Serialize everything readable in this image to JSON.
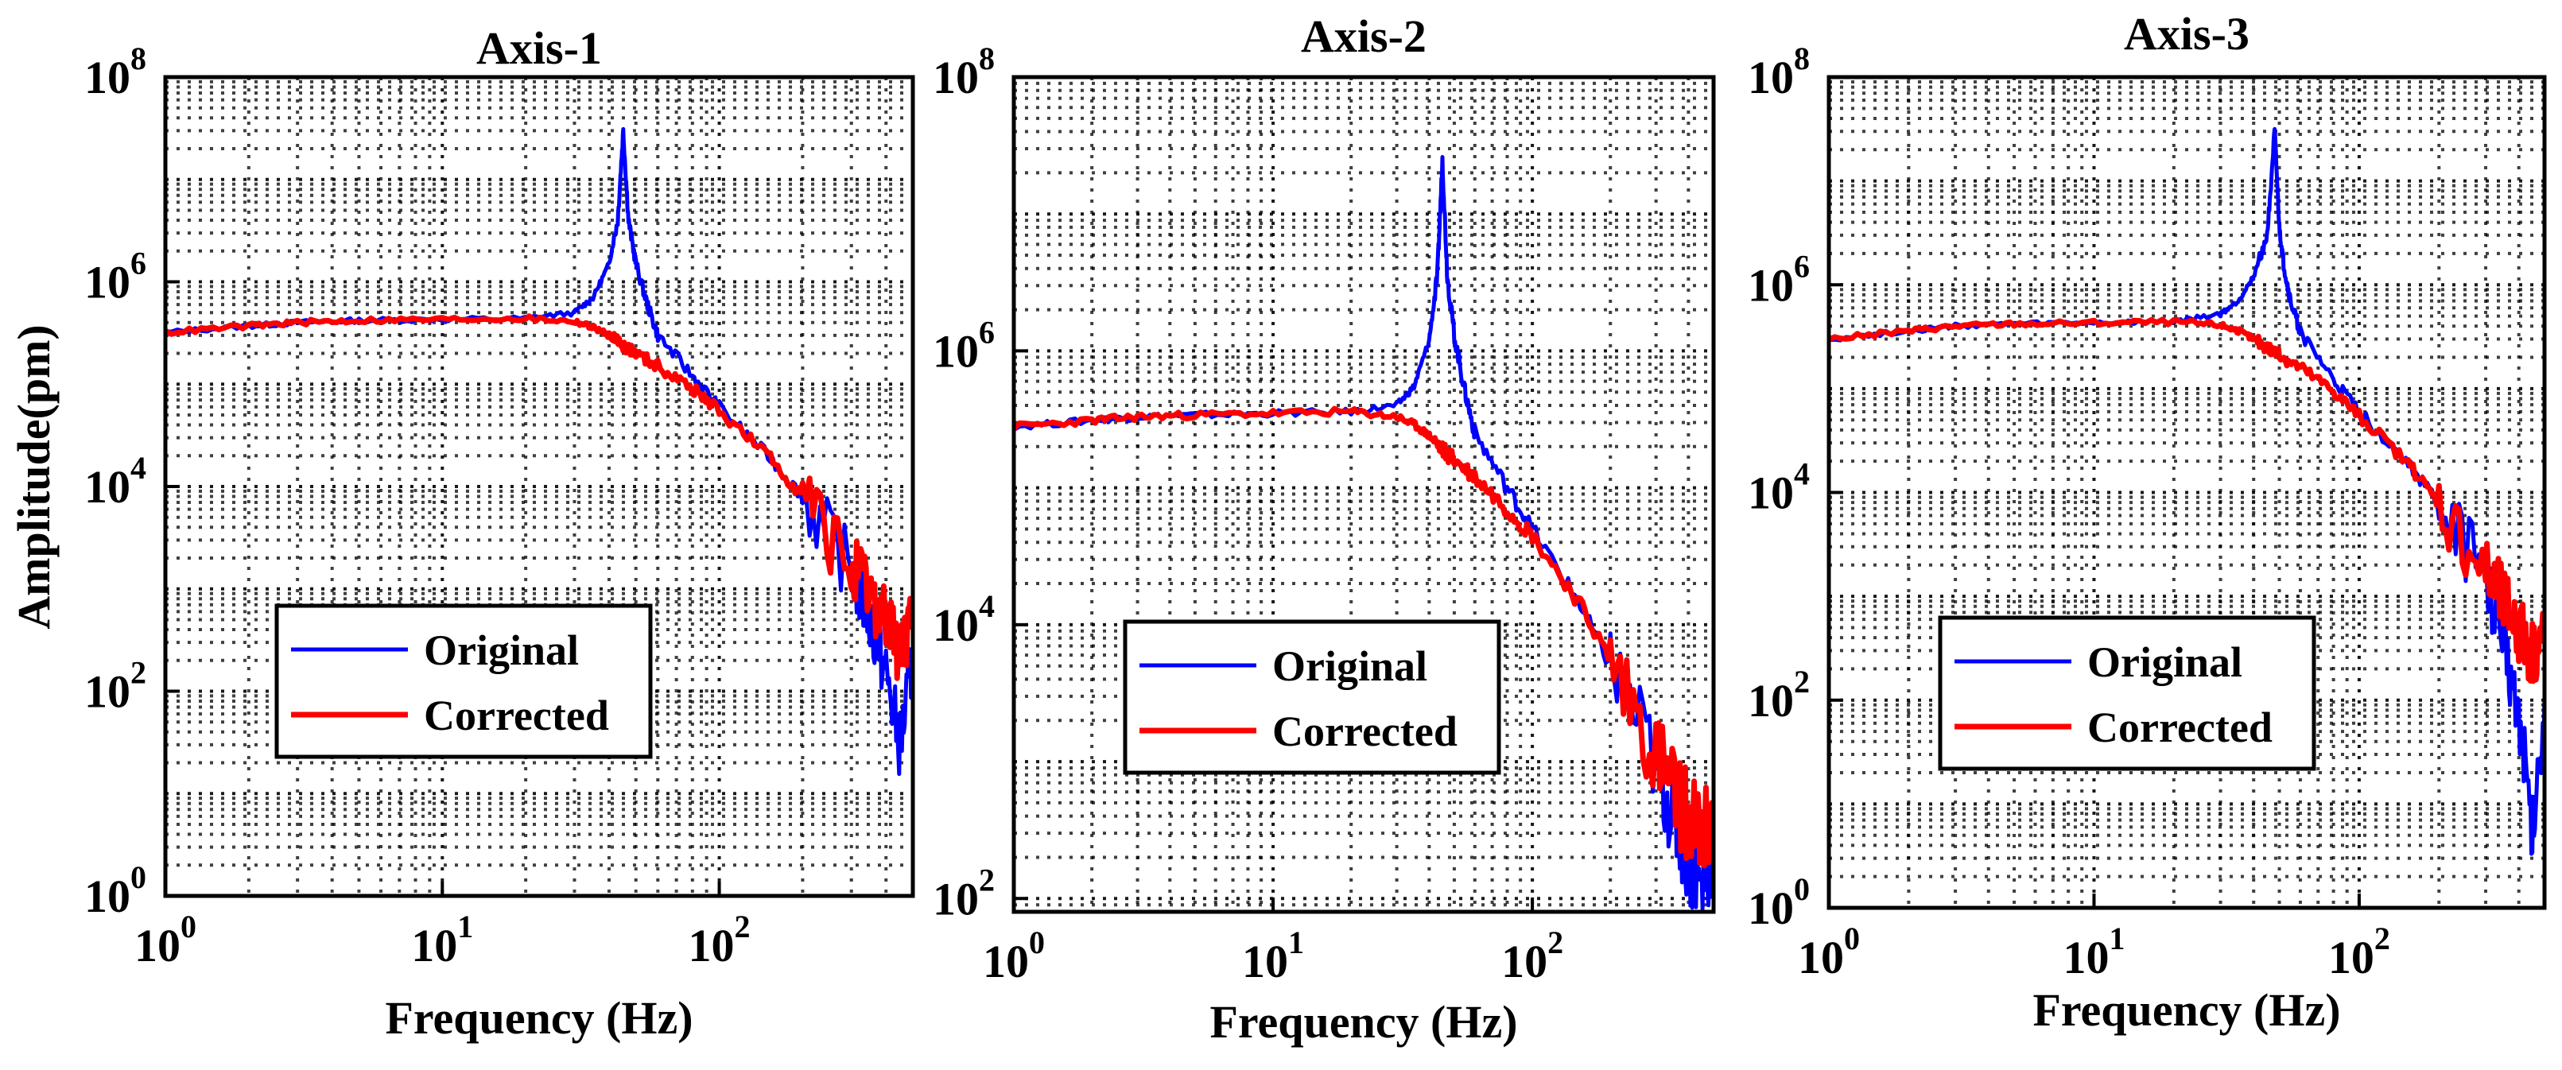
{
  "figure": {
    "ylabel": "Amplitude(pm)",
    "xlabel": "Frequency (Hz)"
  },
  "colors": {
    "original": "#0000ff",
    "corrected": "#ff0000",
    "grid": "#000000"
  },
  "chart_data": [
    {
      "type": "line",
      "title": "Axis-1",
      "xlabel": "Frequency (Hz)",
      "ylabel": "Amplitude(pm)",
      "xscale": "log",
      "yscale": "log",
      "xlim": [
        1,
        500
      ],
      "ylim": [
        1,
        100000000
      ],
      "xticks": [
        {
          "base": "10",
          "exp": "0"
        },
        {
          "base": "10",
          "exp": "1"
        },
        {
          "base": "10",
          "exp": "2"
        }
      ],
      "yticks": [
        {
          "base": "10",
          "exp": "0"
        },
        {
          "base": "10",
          "exp": "2"
        },
        {
          "base": "10",
          "exp": "4"
        },
        {
          "base": "10",
          "exp": "6"
        },
        {
          "base": "10",
          "exp": "8"
        }
      ],
      "grid": true,
      "legend_position": "bottom-left",
      "series": [
        {
          "name": "Original",
          "color": "#0000ff",
          "x": [
            1,
            2,
            3,
            5,
            10,
            20,
            30,
            35,
            40,
            43,
            45,
            47,
            50,
            55,
            60,
            80,
            100,
            150,
            200,
            300,
            350,
            400,
            450,
            500
          ],
          "y": [
            320000,
            370000,
            400000,
            420000,
            430000,
            440000,
            500000,
            700000,
            1500000,
            4000000,
            30000000,
            4000000,
            1500000,
            600000,
            300000,
            120000,
            60000,
            20000,
            8000,
            1500,
            500,
            150,
            30,
            200
          ]
        },
        {
          "name": "Corrected",
          "color": "#ff0000",
          "x": [
            1,
            2,
            3,
            5,
            10,
            20,
            30,
            35,
            40,
            45,
            50,
            60,
            80,
            100,
            150,
            200,
            300,
            350,
            400,
            450,
            500
          ],
          "y": [
            320000,
            370000,
            400000,
            420000,
            430000,
            440000,
            410000,
            360000,
            300000,
            240000,
            200000,
            150000,
            90000,
            55000,
            20000,
            8000,
            1600,
            800,
            500,
            250,
            400
          ]
        }
      ]
    },
    {
      "type": "line",
      "title": "Axis-2",
      "xlabel": "Frequency (Hz)",
      "ylabel": "",
      "xscale": "log",
      "yscale": "log",
      "xlim": [
        1,
        500
      ],
      "ylim": [
        80,
        100000000
      ],
      "xticks": [
        {
          "base": "10",
          "exp": "0"
        },
        {
          "base": "10",
          "exp": "1"
        },
        {
          "base": "10",
          "exp": "2"
        }
      ],
      "yticks": [
        {
          "base": "10",
          "exp": "2"
        },
        {
          "base": "10",
          "exp": "4"
        },
        {
          "base": "10",
          "exp": "6"
        },
        {
          "base": "10",
          "exp": "8"
        }
      ],
      "grid": true,
      "legend_position": "bottom-left",
      "series": [
        {
          "name": "Original",
          "color": "#0000ff",
          "x": [
            1,
            2,
            3,
            5,
            10,
            20,
            30,
            35,
            40,
            43,
            45,
            47,
            50,
            55,
            60,
            80,
            100,
            150,
            200,
            300,
            350,
            400,
            450,
            500
          ],
          "y": [
            280000,
            310000,
            330000,
            340000,
            350000,
            360000,
            400000,
            550000,
            1200000,
            3500000,
            25000000,
            3500000,
            1300000,
            500000,
            250000,
            100000,
            50000,
            15000,
            5000,
            1000,
            400,
            200,
            120,
            250
          ]
        },
        {
          "name": "Corrected",
          "color": "#ff0000",
          "x": [
            1,
            2,
            3,
            5,
            10,
            20,
            30,
            35,
            40,
            45,
            50,
            60,
            80,
            100,
            150,
            200,
            300,
            350,
            400,
            450,
            500
          ],
          "y": [
            280000,
            310000,
            330000,
            340000,
            350000,
            360000,
            330000,
            290000,
            240000,
            190000,
            160000,
            120000,
            70000,
            45000,
            15000,
            5500,
            1200,
            600,
            400,
            280,
            350
          ]
        }
      ]
    },
    {
      "type": "line",
      "title": "Axis-3",
      "xlabel": "Frequency (Hz)",
      "ylabel": "",
      "xscale": "log",
      "yscale": "log",
      "xlim": [
        1,
        500
      ],
      "ylim": [
        1,
        100000000
      ],
      "xticks": [
        {
          "base": "10",
          "exp": "0"
        },
        {
          "base": "10",
          "exp": "1"
        },
        {
          "base": "10",
          "exp": "2"
        }
      ],
      "yticks": [
        {
          "base": "10",
          "exp": "0"
        },
        {
          "base": "10",
          "exp": "2"
        },
        {
          "base": "10",
          "exp": "4"
        },
        {
          "base": "10",
          "exp": "6"
        },
        {
          "base": "10",
          "exp": "8"
        }
      ],
      "grid": true,
      "legend_position": "bottom-left",
      "series": [
        {
          "name": "Original",
          "color": "#0000ff",
          "x": [
            1,
            2,
            3,
            5,
            10,
            20,
            30,
            35,
            40,
            45,
            48,
            50,
            52,
            55,
            60,
            80,
            100,
            150,
            200,
            300,
            350,
            400,
            450,
            500
          ],
          "y": [
            300000,
            360000,
            400000,
            420000,
            430000,
            440000,
            520000,
            700000,
            1200000,
            3000000,
            30000000,
            3500000,
            1500000,
            700000,
            350000,
            120000,
            60000,
            20000,
            8000,
            1500,
            400,
            80,
            5,
            100
          ]
        },
        {
          "name": "Corrected",
          "color": "#ff0000",
          "x": [
            1,
            2,
            3,
            5,
            10,
            20,
            30,
            35,
            40,
            45,
            50,
            60,
            80,
            100,
            150,
            200,
            300,
            350,
            400,
            450,
            500
          ],
          "y": [
            300000,
            360000,
            400000,
            420000,
            430000,
            440000,
            410000,
            360000,
            300000,
            250000,
            210000,
            160000,
            95000,
            55000,
            20000,
            8000,
            1800,
            900,
            500,
            300,
            450
          ]
        }
      ]
    }
  ]
}
